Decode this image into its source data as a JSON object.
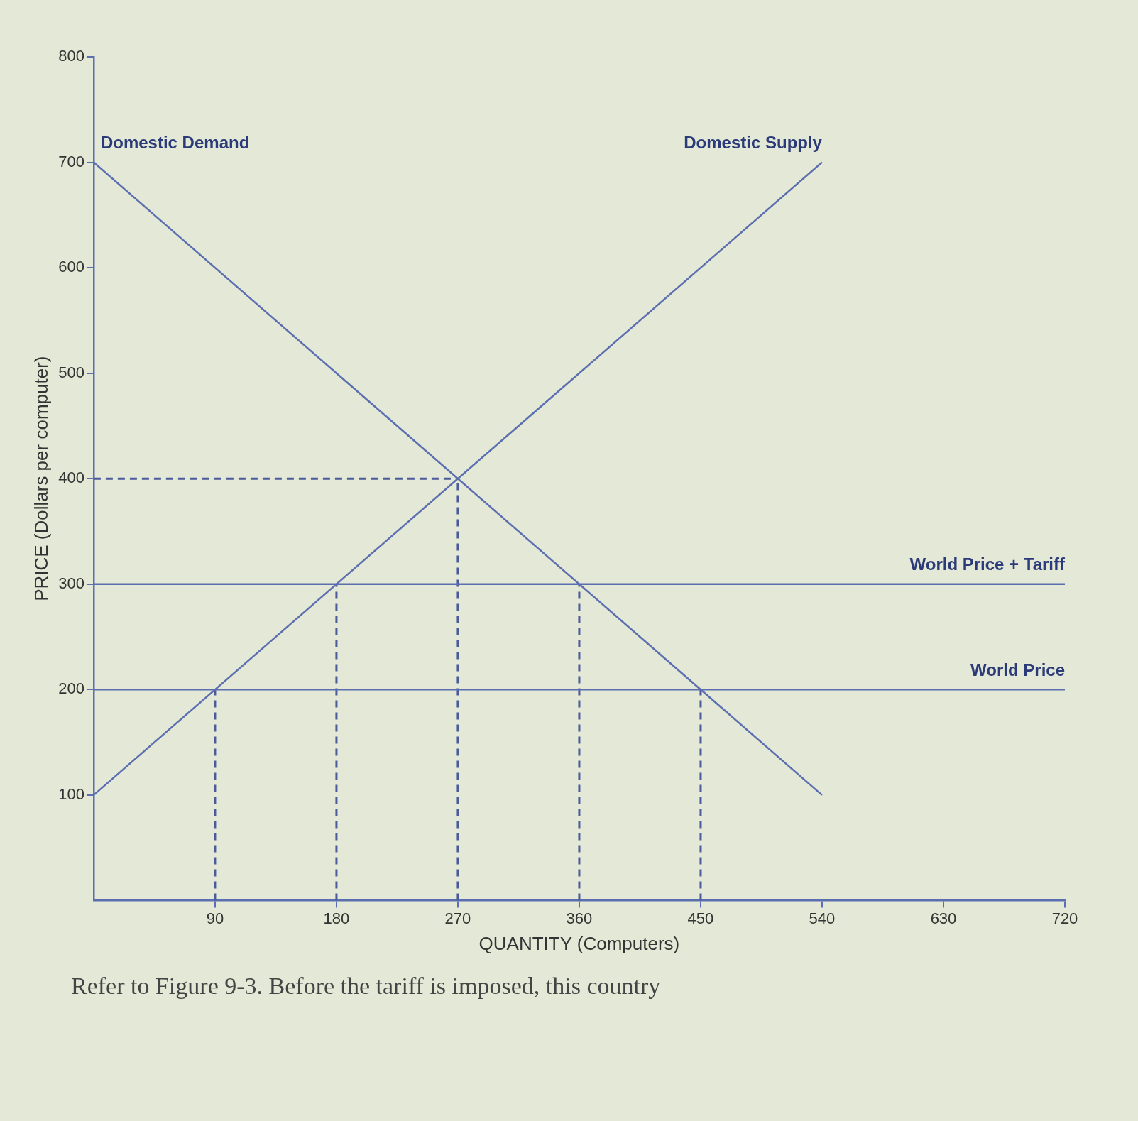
{
  "chart_data": {
    "type": "line",
    "xlabel": "QUANTITY (Computers)",
    "ylabel": "PRICE (Dollars per computer)",
    "xlim": [
      0,
      720
    ],
    "ylim": [
      0,
      800
    ],
    "xticks": [
      90,
      180,
      270,
      360,
      450,
      540,
      630,
      720
    ],
    "yticks": [
      100,
      200,
      300,
      400,
      500,
      600,
      700,
      800
    ],
    "grid": false,
    "legend": false,
    "marker": "none",
    "line_style": "solid",
    "annotations": [
      "Refer to Figure 9-3. Before the tariff is imposed, this country"
    ],
    "series": [
      {
        "name": "Domestic Demand",
        "color": "#5b6eb0",
        "x": [
          0,
          540
        ],
        "values": [
          700,
          100
        ]
      },
      {
        "name": "Domestic Supply",
        "color": "#5b6eb0",
        "x": [
          0,
          540
        ],
        "values": [
          100,
          700
        ]
      },
      {
        "name": "World Price + Tariff",
        "color": "#5b6eb0",
        "x": [
          0,
          720
        ],
        "values": [
          300,
          300
        ]
      },
      {
        "name": "World Price",
        "color": "#5b6eb0",
        "x": [
          0,
          720
        ],
        "values": [
          200,
          200
        ]
      },
      {
        "color": "#4a5a9a",
        "line_style": "dashed",
        "x": [
          90,
          90
        ],
        "values": [
          0,
          200
        ]
      },
      {
        "color": "#4a5a9a",
        "line_style": "dashed",
        "x": [
          180,
          180
        ],
        "values": [
          0,
          300
        ]
      },
      {
        "color": "#4a5a9a",
        "line_style": "dashed",
        "x": [
          270,
          270
        ],
        "values": [
          0,
          400
        ]
      },
      {
        "color": "#4a5a9a",
        "line_style": "dashed",
        "x": [
          360,
          360
        ],
        "values": [
          0,
          300
        ]
      },
      {
        "color": "#4a5a9a",
        "line_style": "dashed",
        "x": [
          450,
          450
        ],
        "values": [
          0,
          200
        ]
      },
      {
        "color": "#4a5a9a",
        "line_style": "dashed",
        "x": [
          0,
          270
        ],
        "values": [
          400,
          400
        ]
      }
    ]
  }
}
